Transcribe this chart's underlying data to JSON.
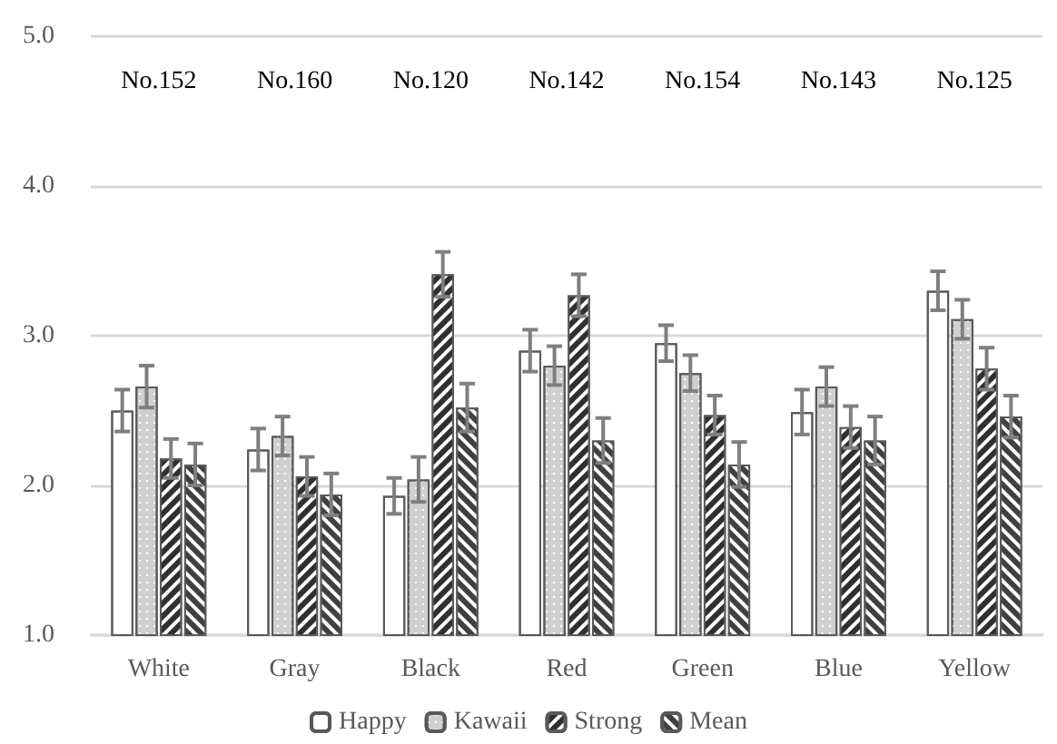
{
  "chart_data": {
    "type": "bar",
    "categories": [
      "White",
      "Gray",
      "Black",
      "Red",
      "Green",
      "Blue",
      "Yellow"
    ],
    "series": [
      {
        "name": "Happy",
        "color": "#ffffff",
        "values": [
          2.5,
          2.24,
          1.93,
          2.9,
          2.95,
          2.49,
          3.3
        ],
        "errors": [
          0.14,
          0.14,
          0.12,
          0.14,
          0.12,
          0.15,
          0.13
        ]
      },
      {
        "name": "Kawaii",
        "color": "#d0d0d0",
        "values": [
          2.66,
          2.33,
          2.04,
          2.8,
          2.75,
          2.66,
          3.11
        ],
        "errors": [
          0.14,
          0.13,
          0.15,
          0.13,
          0.12,
          0.13,
          0.13
        ]
      },
      {
        "name": "Strong",
        "color": "#303030",
        "values": [
          2.18,
          2.06,
          3.41,
          3.27,
          2.47,
          2.39,
          2.78
        ],
        "errors": [
          0.13,
          0.13,
          0.15,
          0.14,
          0.13,
          0.14,
          0.14
        ]
      },
      {
        "name": "Mean",
        "color": "#404040",
        "values": [
          2.14,
          1.94,
          2.52,
          2.3,
          2.14,
          2.3,
          2.46
        ],
        "errors": [
          0.14,
          0.14,
          0.16,
          0.15,
          0.15,
          0.16,
          0.14
        ]
      }
    ],
    "ylim": [
      1,
      5
    ],
    "yticks": [
      {
        "value": 1,
        "label": "1.0"
      },
      {
        "value": 2,
        "label": "2.0"
      },
      {
        "value": 3,
        "label": "3.0"
      },
      {
        "value": 4,
        "label": "4.0"
      },
      {
        "value": 5,
        "label": "5.0"
      }
    ],
    "grid": "y",
    "legend": "bottom",
    "annotations": [
      "No.152",
      "No.160",
      "No.120",
      "No.142",
      "No.154",
      "No.143",
      "No.125"
    ]
  }
}
